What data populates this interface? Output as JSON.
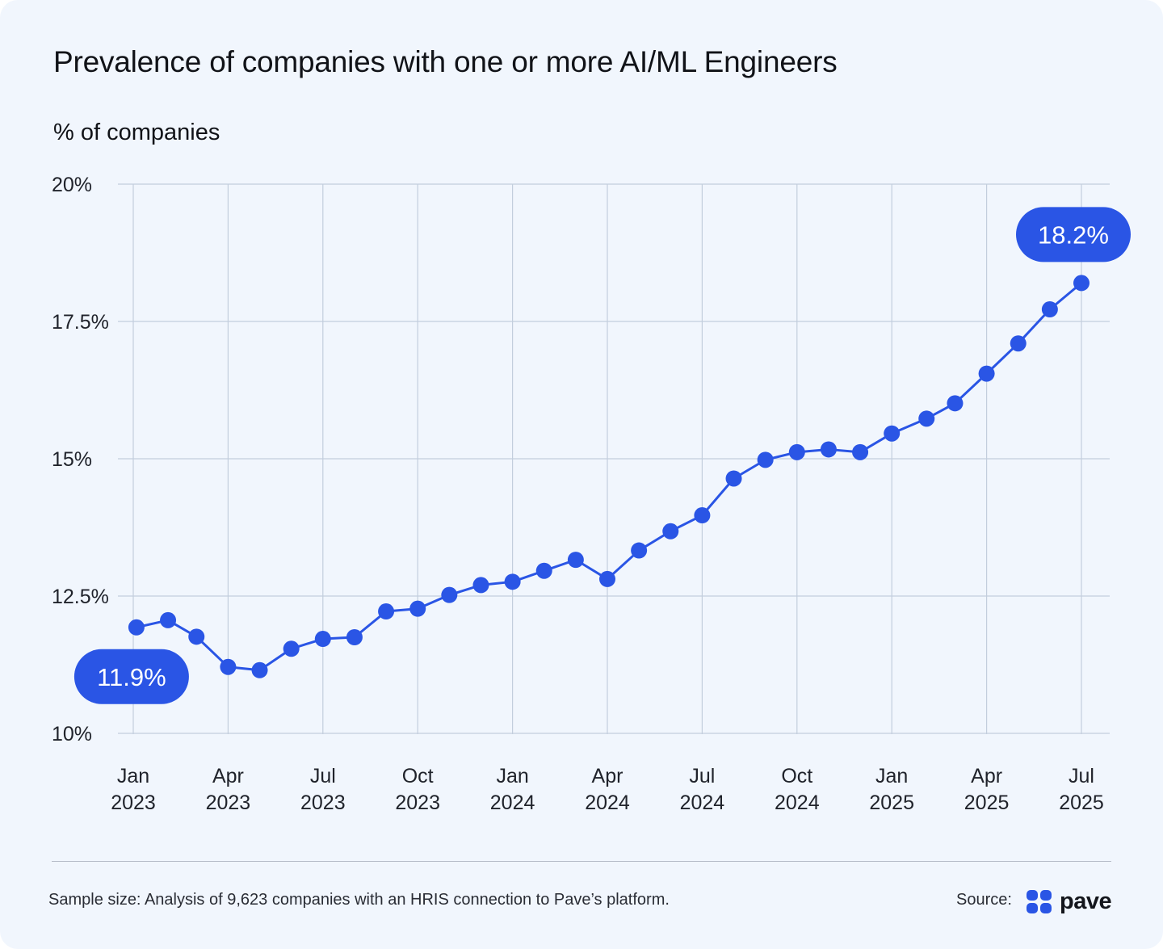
{
  "title": "Prevalence of companies with one or more AI/ML Engineers",
  "footnote": "Sample size: Analysis of 9,623 companies with an HRIS connection to Pave’s platform.",
  "source": {
    "label": "Source:",
    "logo_word": "pave",
    "logo_icon": "pave-logo-icon"
  },
  "colors": {
    "line": "#2a55e5",
    "background": "#f1f6fd",
    "grid": "#c3cedd"
  },
  "chart_data": {
    "type": "line",
    "ylabel": "% of companies",
    "ylim": [
      10,
      20
    ],
    "yticks": [
      {
        "value": 20,
        "label": "20%"
      },
      {
        "value": 17.5,
        "label": "17.5%"
      },
      {
        "value": 15,
        "label": "15%"
      },
      {
        "value": 12.5,
        "label": "12.5%"
      },
      {
        "value": 10,
        "label": "10%"
      }
    ],
    "xticks": [
      {
        "month": 0,
        "line1": "Jan",
        "line2": "2023"
      },
      {
        "month": 3,
        "line1": "Apr",
        "line2": "2023"
      },
      {
        "month": 6,
        "line1": "Jul",
        "line2": "2023"
      },
      {
        "month": 9,
        "line1": "Oct",
        "line2": "2023"
      },
      {
        "month": 12,
        "line1": "Jan",
        "line2": "2024"
      },
      {
        "month": 15,
        "line1": "Apr",
        "line2": "2024"
      },
      {
        "month": 18,
        "line1": "Jul",
        "line2": "2024"
      },
      {
        "month": 21,
        "line1": "Oct",
        "line2": "2024"
      },
      {
        "month": 24,
        "line1": "Jan",
        "line2": "2025"
      },
      {
        "month": 27,
        "line1": "Apr",
        "line2": "2025"
      },
      {
        "month": 30,
        "line1": "Jul",
        "line2": "2025"
      }
    ],
    "grid": true,
    "series": [
      {
        "months": [
          0.1,
          1.1,
          2.0,
          3.0,
          4.0,
          5.0,
          6.0,
          7.0,
          8.0,
          9.0,
          10.0,
          11.0,
          12.0,
          13.0,
          14.0,
          15.0,
          16.0,
          17.0,
          18.0,
          19.0,
          20.0,
          21.0,
          22.0,
          23.0,
          24.0,
          25.1,
          26.0,
          27.0,
          28.0,
          29.0,
          30.0
        ],
        "values": [
          11.93,
          12.06,
          11.76,
          11.21,
          11.15,
          11.54,
          11.72,
          11.75,
          12.22,
          12.27,
          12.52,
          12.7,
          12.76,
          12.96,
          13.16,
          12.81,
          13.33,
          13.68,
          13.97,
          14.64,
          14.98,
          15.12,
          15.17,
          15.12,
          15.46,
          15.73,
          16.01,
          16.55,
          17.1,
          17.72,
          18.2
        ]
      }
    ],
    "annotations": [
      {
        "label": "11.9%",
        "at_point": 0,
        "position": "below-left"
      },
      {
        "label": "18.2%",
        "at_point": 30,
        "position": "above"
      }
    ]
  }
}
